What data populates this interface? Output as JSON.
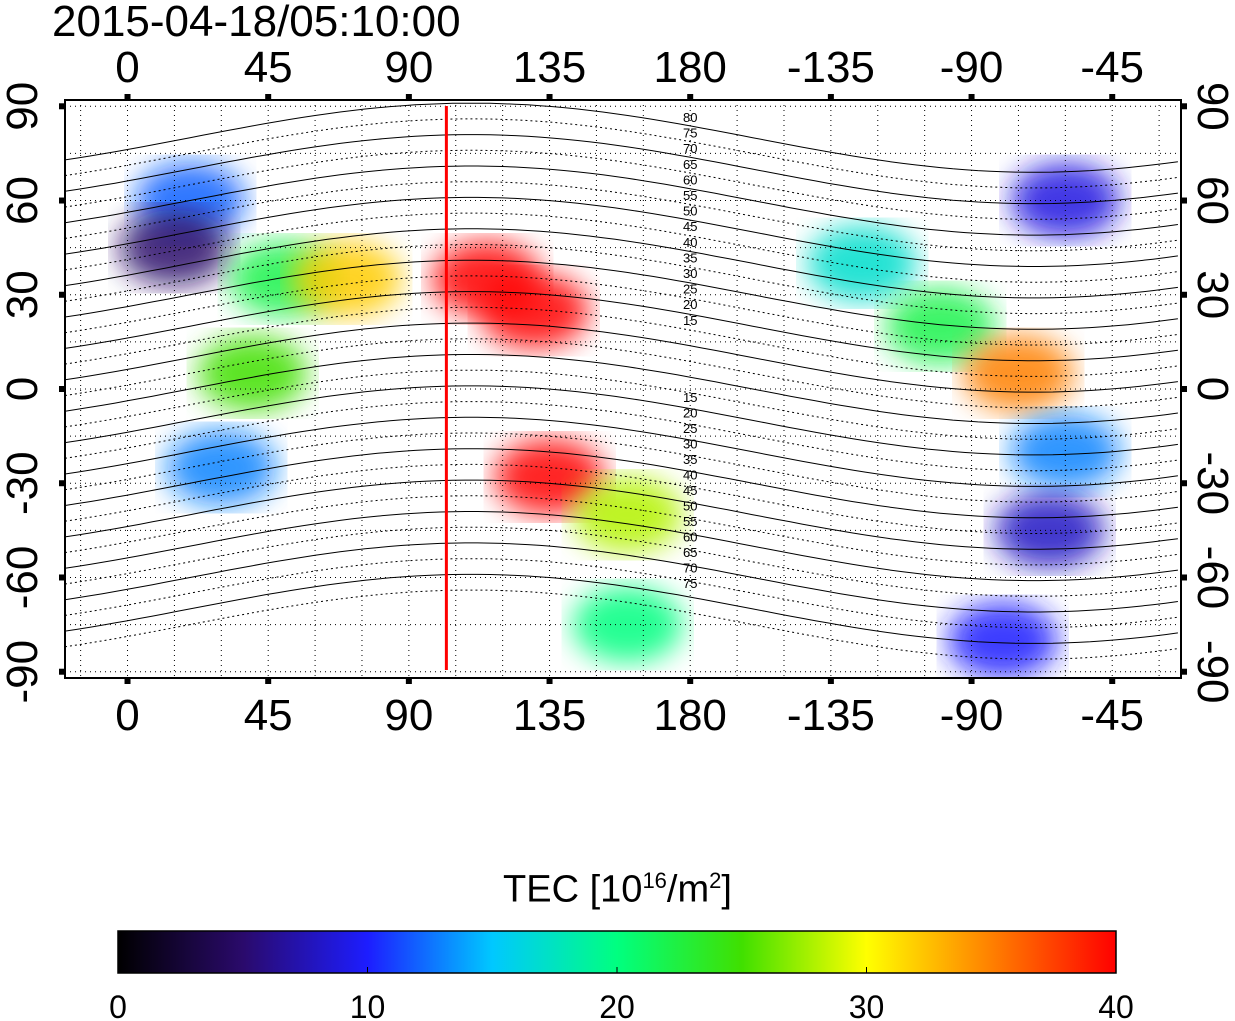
{
  "timestamp": "2015-04-18/05:10:00",
  "colorbar": {
    "title_prefix": "TEC  [10",
    "title_exp1": "16",
    "title_mid": "/m",
    "title_exp2": "2",
    "title_suffix": "]",
    "min": 0,
    "max": 40,
    "tick_labels": [
      "0",
      "10",
      "20",
      "30",
      "40"
    ],
    "colors": [
      "#000000",
      "#2a0a6b",
      "#1d1dff",
      "#00c8ff",
      "#00ff80",
      "#40e000",
      "#ffff00",
      "#ff8000",
      "#ff0000"
    ]
  },
  "chart_data": {
    "type": "heatmap",
    "title": "2015-04-18/05:10:00",
    "x_top_tick_labels": [
      "0",
      "45",
      "90",
      "135",
      "180",
      "-135",
      "-90",
      "-45"
    ],
    "x_bottom_tick_labels": [
      "0",
      "45",
      "90",
      "135",
      "180",
      "-135",
      "-90",
      "-45"
    ],
    "y_left_tick_labels": [
      "90",
      "60",
      "30",
      "0",
      "-30",
      "-60",
      "-90"
    ],
    "y_right_tick_labels": [
      "90",
      "60",
      "30",
      "0",
      "-30",
      "-60",
      "-90"
    ],
    "x_range_deg": [
      -20,
      337
    ],
    "y_range_deg": [
      -92,
      92
    ],
    "grid": true,
    "marker_line_longitude": 102,
    "marker_line_color": "#ff0000",
    "contour_labels_north": [
      "80",
      "75",
      "70",
      "65",
      "60",
      "55",
      "50",
      "45",
      "40",
      "35",
      "30",
      "25",
      "20",
      "15"
    ],
    "contour_labels_south": [
      "15",
      "20",
      "25",
      "30",
      "35",
      "40",
      "45",
      "50",
      "55",
      "60",
      "65",
      "70",
      "75"
    ],
    "tec_regions": [
      {
        "lon": 20,
        "lat": 60,
        "tec": 12
      },
      {
        "lon": 15,
        "lat": 45,
        "tec": 5
      },
      {
        "lon": 50,
        "lat": 35,
        "tec": 22
      },
      {
        "lon": 70,
        "lat": 35,
        "tec": 32
      },
      {
        "lon": 115,
        "lat": 35,
        "tec": 40
      },
      {
        "lon": 130,
        "lat": 25,
        "tec": 40
      },
      {
        "lon": 135,
        "lat": -28,
        "tec": 40
      },
      {
        "lon": 160,
        "lat": -40,
        "tec": 28
      },
      {
        "lon": 40,
        "lat": 5,
        "tec": 25
      },
      {
        "lon": 30,
        "lat": -25,
        "tec": 13
      },
      {
        "lon": 235,
        "lat": 40,
        "tec": 17
      },
      {
        "lon": 260,
        "lat": 20,
        "tec": 22
      },
      {
        "lon": 285,
        "lat": 5,
        "tec": 35
      },
      {
        "lon": 300,
        "lat": -20,
        "tec": 13
      },
      {
        "lon": 295,
        "lat": -45,
        "tec": 8
      },
      {
        "lon": 300,
        "lat": 60,
        "tec": 9
      },
      {
        "lon": 160,
        "lat": -75,
        "tec": 20
      },
      {
        "lon": 280,
        "lat": -80,
        "tec": 10
      }
    ]
  }
}
